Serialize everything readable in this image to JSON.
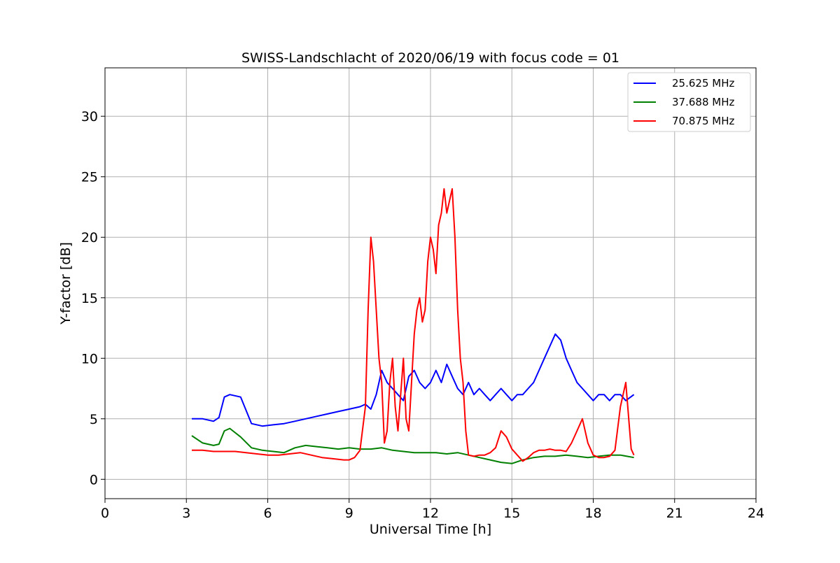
{
  "chart_data": {
    "type": "line",
    "title": "SWISS-Landschlacht of 2020/06/19 with focus code = 01",
    "xlabel": "Universal Time [h]",
    "ylabel": "Y-factor [dB]",
    "xlim": [
      0,
      24
    ],
    "ylim": [
      -1.6,
      34
    ],
    "xticks": [
      0,
      3,
      6,
      9,
      12,
      15,
      18,
      21,
      24
    ],
    "yticks": [
      0,
      5,
      10,
      15,
      20,
      25,
      30
    ],
    "grid": true,
    "legend_position": "top-right",
    "series": [
      {
        "name": "25.625 MHz",
        "color": "#0000ff",
        "x": [
          3.2,
          3.6,
          4.0,
          4.2,
          4.4,
          4.6,
          5.0,
          5.4,
          5.8,
          6.2,
          6.6,
          7.0,
          7.4,
          7.8,
          8.2,
          8.6,
          9.0,
          9.4,
          9.6,
          9.8,
          10.0,
          10.2,
          10.4,
          10.6,
          10.8,
          11.0,
          11.2,
          11.4,
          11.6,
          11.8,
          12.0,
          12.2,
          12.4,
          12.6,
          12.8,
          13.0,
          13.2,
          13.4,
          13.6,
          13.8,
          14.0,
          14.2,
          14.4,
          14.6,
          14.8,
          15.0,
          15.2,
          15.4,
          15.6,
          15.8,
          16.0,
          16.2,
          16.4,
          16.6,
          16.8,
          17.0,
          17.2,
          17.4,
          17.6,
          17.8,
          18.0,
          18.2,
          18.4,
          18.6,
          18.8,
          19.0,
          19.2,
          19.5
        ],
        "y": [
          5.0,
          5.0,
          4.8,
          5.1,
          6.8,
          7.0,
          6.8,
          4.6,
          4.4,
          4.5,
          4.6,
          4.8,
          5.0,
          5.2,
          5.4,
          5.6,
          5.8,
          6.0,
          6.2,
          5.8,
          7.0,
          9.0,
          8.0,
          7.5,
          7.0,
          6.5,
          8.5,
          9.0,
          8.0,
          7.5,
          8.0,
          9.0,
          8.0,
          9.5,
          8.5,
          7.5,
          7.0,
          8.0,
          7.0,
          7.5,
          7.0,
          6.5,
          7.0,
          7.5,
          7.0,
          6.5,
          7.0,
          7.0,
          7.5,
          8.0,
          9.0,
          10.0,
          11.0,
          12.0,
          11.5,
          10.0,
          9.0,
          8.0,
          7.5,
          7.0,
          6.5,
          7.0,
          7.0,
          6.5,
          7.0,
          7.0,
          6.5,
          7.0
        ]
      },
      {
        "name": "37.688 MHz",
        "color": "#008000",
        "x": [
          3.2,
          3.6,
          4.0,
          4.2,
          4.4,
          4.6,
          5.0,
          5.4,
          5.8,
          6.2,
          6.6,
          7.0,
          7.4,
          7.8,
          8.2,
          8.6,
          9.0,
          9.4,
          9.8,
          10.2,
          10.6,
          11.0,
          11.4,
          11.8,
          12.2,
          12.6,
          13.0,
          13.4,
          13.8,
          14.2,
          14.6,
          15.0,
          15.4,
          15.8,
          16.2,
          16.6,
          17.0,
          17.4,
          17.8,
          18.2,
          18.6,
          19.0,
          19.5
        ],
        "y": [
          3.6,
          3.0,
          2.8,
          2.9,
          4.0,
          4.2,
          3.5,
          2.6,
          2.4,
          2.3,
          2.2,
          2.6,
          2.8,
          2.7,
          2.6,
          2.5,
          2.6,
          2.5,
          2.5,
          2.6,
          2.4,
          2.3,
          2.2,
          2.2,
          2.2,
          2.1,
          2.2,
          2.0,
          1.8,
          1.6,
          1.4,
          1.3,
          1.6,
          1.8,
          1.9,
          1.9,
          2.0,
          1.9,
          1.8,
          1.9,
          2.0,
          2.0,
          1.8
        ]
      },
      {
        "name": "70.875 MHz",
        "color": "#ff0000",
        "x": [
          3.2,
          3.6,
          4.0,
          4.4,
          4.8,
          5.2,
          5.6,
          6.0,
          6.4,
          6.8,
          7.2,
          7.6,
          8.0,
          8.4,
          8.8,
          9.0,
          9.2,
          9.4,
          9.6,
          9.7,
          9.8,
          9.9,
          10.0,
          10.1,
          10.2,
          10.3,
          10.4,
          10.5,
          10.6,
          10.7,
          10.8,
          10.9,
          11.0,
          11.1,
          11.2,
          11.3,
          11.4,
          11.5,
          11.6,
          11.7,
          11.8,
          11.9,
          12.0,
          12.1,
          12.2,
          12.3,
          12.4,
          12.5,
          12.6,
          12.7,
          12.8,
          12.9,
          13.0,
          13.1,
          13.2,
          13.3,
          13.4,
          13.6,
          13.8,
          14.0,
          14.2,
          14.4,
          14.6,
          14.8,
          15.0,
          15.2,
          15.4,
          15.6,
          15.8,
          16.0,
          16.2,
          16.4,
          16.6,
          16.8,
          17.0,
          17.2,
          17.4,
          17.6,
          17.8,
          18.0,
          18.2,
          18.4,
          18.6,
          18.8,
          19.0,
          19.2,
          19.4,
          19.5
        ],
        "y": [
          2.4,
          2.4,
          2.3,
          2.3,
          2.3,
          2.2,
          2.1,
          2.0,
          2.0,
          2.1,
          2.2,
          2.0,
          1.8,
          1.7,
          1.6,
          1.6,
          1.8,
          2.4,
          6.0,
          14.0,
          20.0,
          18.0,
          14.0,
          10.0,
          8.0,
          3.0,
          4.0,
          8.0,
          10.0,
          6.0,
          4.0,
          7.0,
          10.0,
          5.0,
          4.0,
          8.0,
          12.0,
          14.0,
          15.0,
          13.0,
          14.0,
          18.0,
          20.0,
          19.0,
          17.0,
          21.0,
          22.0,
          24.0,
          22.0,
          23.0,
          24.0,
          20.0,
          14.0,
          10.0,
          8.0,
          4.0,
          2.0,
          1.9,
          2.0,
          2.0,
          2.2,
          2.6,
          4.0,
          3.5,
          2.5,
          2.0,
          1.5,
          1.8,
          2.2,
          2.4,
          2.4,
          2.5,
          2.4,
          2.4,
          2.3,
          3.0,
          4.0,
          5.0,
          3.0,
          2.0,
          1.8,
          1.8,
          1.9,
          2.4,
          6.0,
          8.0,
          2.5,
          2.0
        ]
      }
    ]
  }
}
